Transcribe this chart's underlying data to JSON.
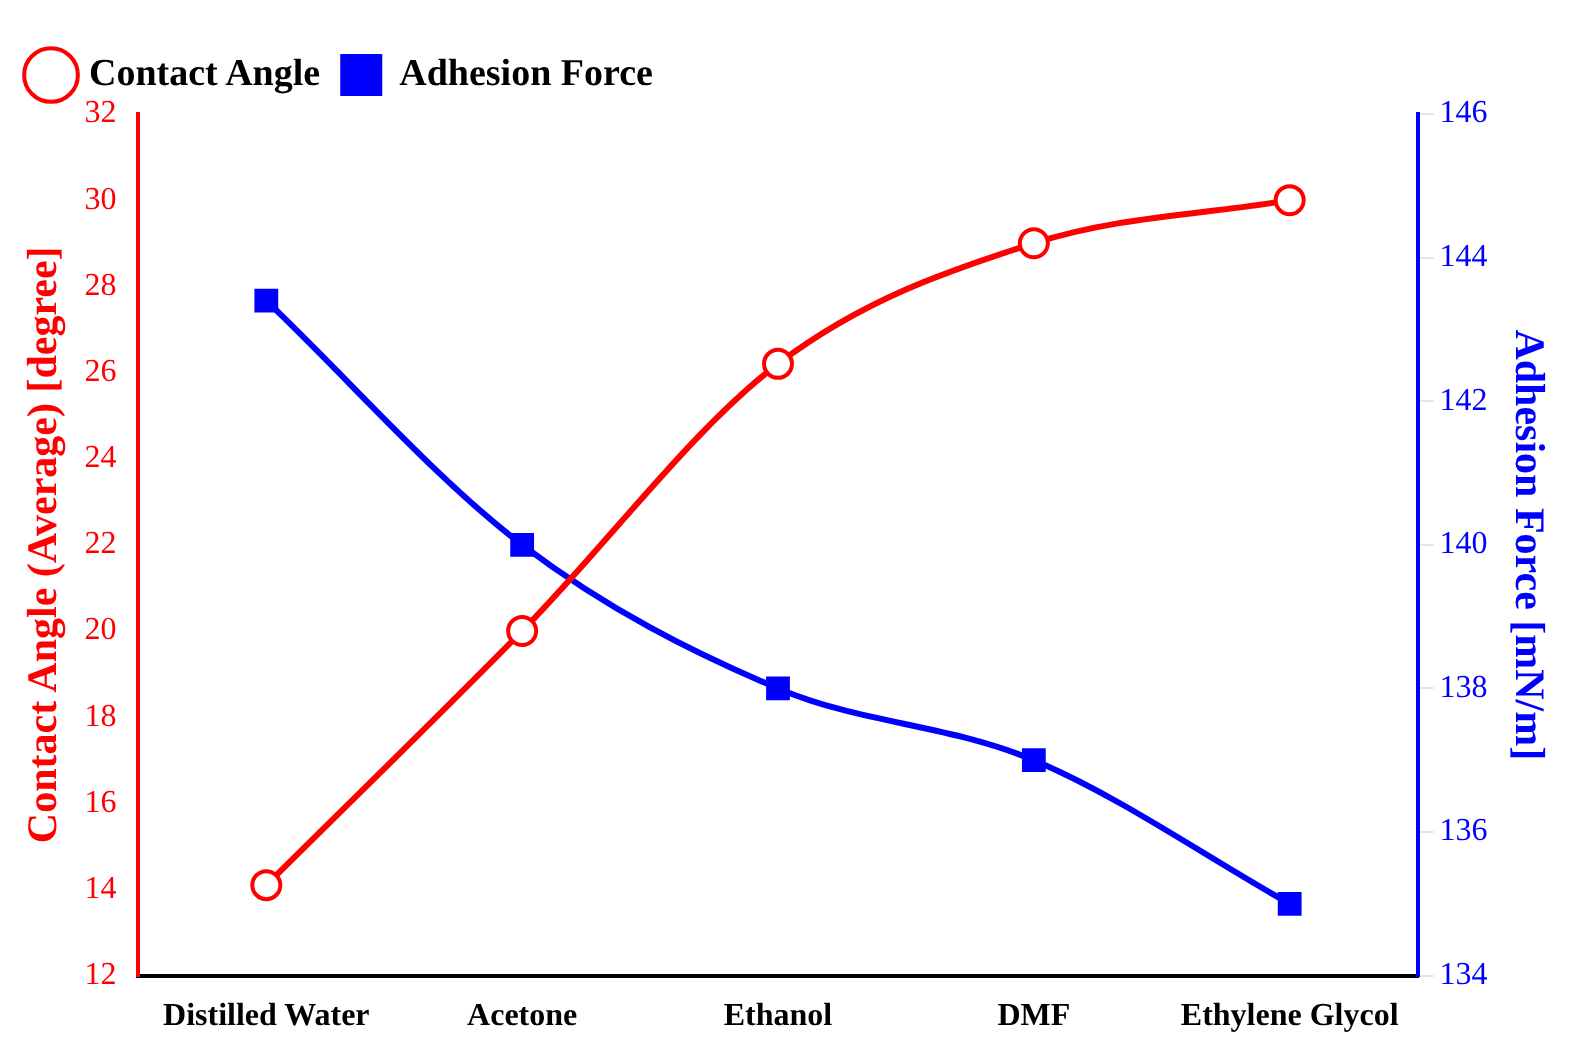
{
  "chart_data": {
    "type": "line",
    "categories": [
      "Distilled Water",
      "Acetone",
      "Ethanol",
      "DMF",
      "Ethylene Glycol"
    ],
    "ylabel": "Contact Angle (Average) [degree]",
    "y2label": "Adhesion Force [mN/m]",
    "ylim": [
      12,
      32
    ],
    "yticks": [
      12,
      14,
      16,
      18,
      20,
      22,
      24,
      26,
      28,
      30,
      32
    ],
    "y2lim": [
      134,
      146
    ],
    "y2ticks": [
      134,
      136,
      138,
      140,
      142,
      144,
      146
    ],
    "legend": "top left",
    "grid": false,
    "line_style": "solid",
    "series": [
      {
        "name": "Contact Angle",
        "color": "#ff0000",
        "marker": "circle",
        "values": [
          14.1,
          20.0,
          26.2,
          29.0,
          30.0
        ]
      },
      {
        "name": "Adhesion Force",
        "color": "#0000ff",
        "marker": "square",
        "axis": "y2",
        "values": [
          143.4,
          140.0,
          138.0,
          137.0,
          135.0
        ]
      }
    ]
  }
}
